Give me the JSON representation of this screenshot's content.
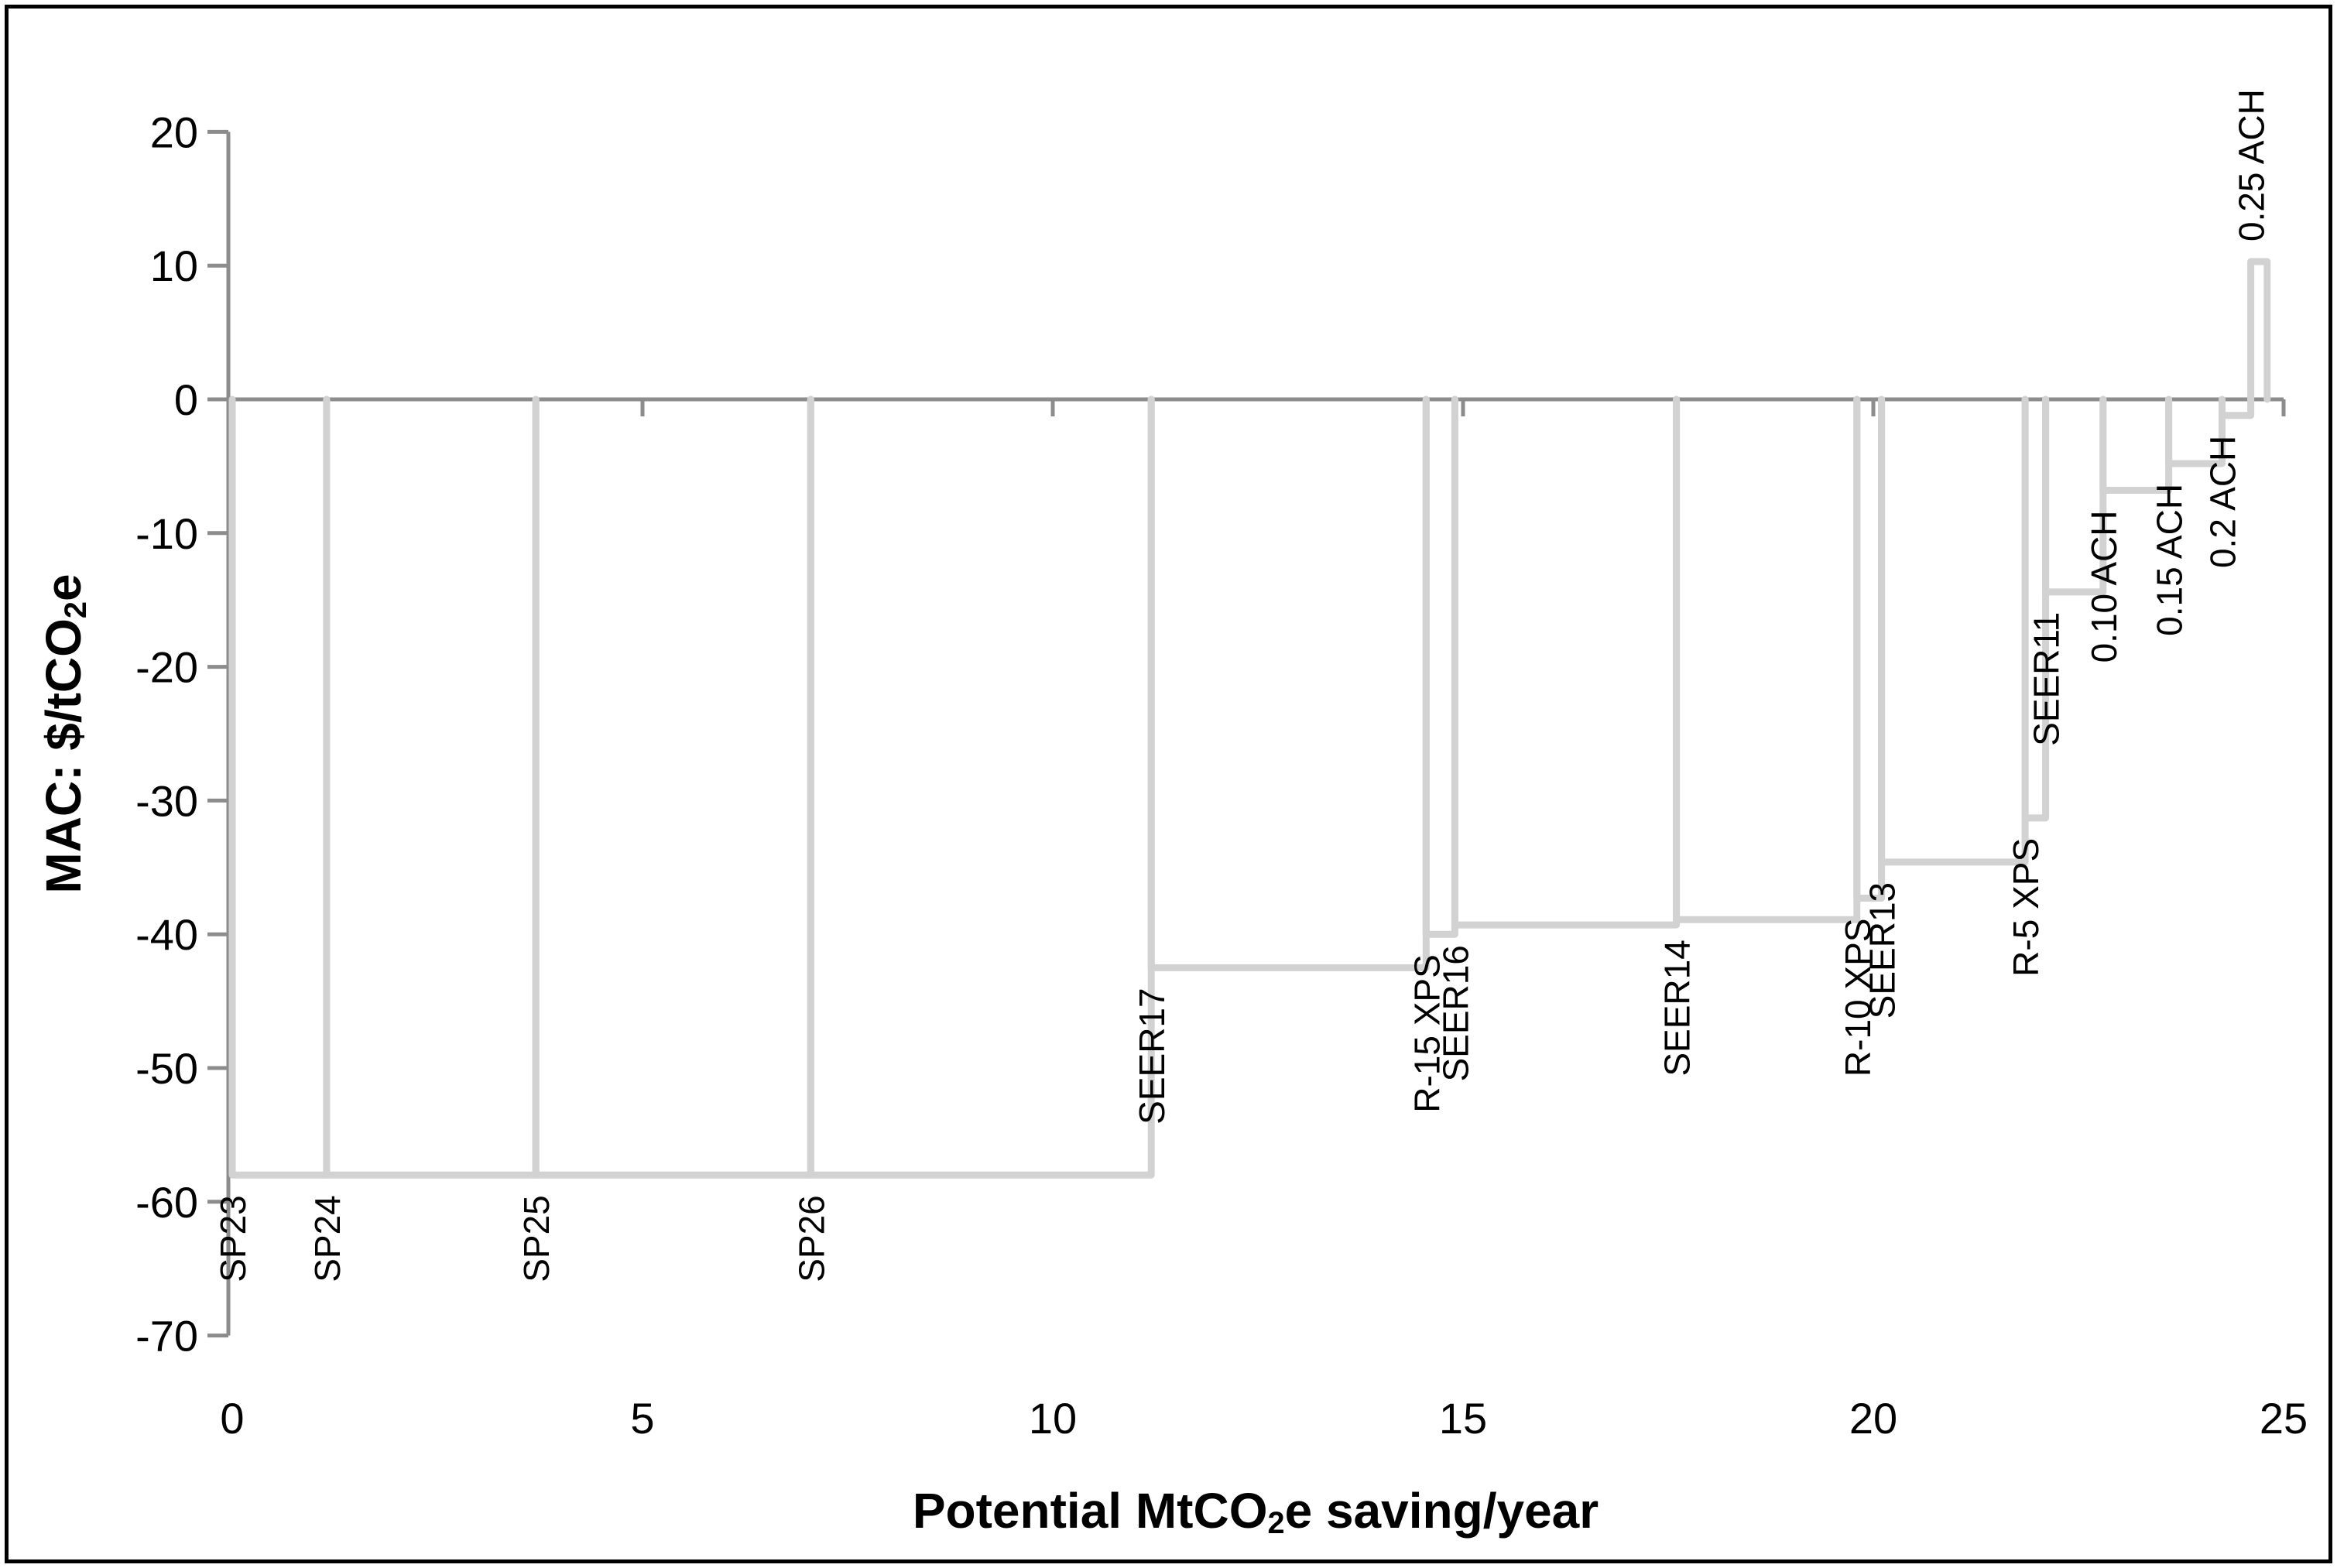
{
  "figure": {
    "background_color": "#ffffff",
    "border_color": "#000000"
  },
  "y_axis": {
    "title_prefix": "MAC: $/tCO",
    "title_sub": "2",
    "title_suffix": "e",
    "ticks": [
      20,
      10,
      0,
      -10,
      -20,
      -30,
      -40,
      -50,
      -60,
      -70
    ]
  },
  "x_axis": {
    "title_prefix": "Potential MtCO",
    "title_sub": "2",
    "title_suffix": "e saving/year",
    "ticks": [
      0,
      5,
      10,
      15,
      20,
      25
    ]
  },
  "chart_data": {
    "type": "line",
    "subtype": "marginal-abatement-cost-step-curve",
    "title": "",
    "xlabel": "Potential MtCO2e saving/year",
    "ylabel": "MAC: $/tCO2e",
    "xlim": [
      0,
      25
    ],
    "ylim": [
      -70,
      20
    ],
    "x_ticks": [
      0,
      5,
      10,
      15,
      20,
      25
    ],
    "y_ticks": [
      20,
      10,
      0,
      -10,
      -20,
      -30,
      -40,
      -50,
      -60,
      -70
    ],
    "grid": false,
    "legend": "none",
    "line_color": "#D2D2D2",
    "axis_color": "#8C8C8C",
    "label_color": "#000000",
    "series": [
      {
        "label": "SP23",
        "x_start": 0,
        "x_end": 1.15,
        "mac": -58
      },
      {
        "label": "SP24",
        "x_start": 1.15,
        "x_end": 3.7,
        "mac": -58
      },
      {
        "label": "SP25",
        "x_start": 3.7,
        "x_end": 7.05,
        "mac": -58
      },
      {
        "label": "SP26",
        "x_start": 7.05,
        "x_end": 11.2,
        "mac": -58
      },
      {
        "label": "SEER17",
        "x_start": 11.2,
        "x_end": 14.55,
        "mac": -42.5
      },
      {
        "label": "R-15 XPS",
        "x_start": 14.55,
        "x_end": 14.9,
        "mac": -40
      },
      {
        "label": "SEER16",
        "x_start": 14.9,
        "x_end": 17.6,
        "mac": -39.3
      },
      {
        "label": "SEER14",
        "x_start": 17.6,
        "x_end": 19.8,
        "mac": -38.9
      },
      {
        "label": "R-10 XPS",
        "x_start": 19.8,
        "x_end": 20.1,
        "mac": -37.3
      },
      {
        "label": "SEER13",
        "x_start": 20.1,
        "x_end": 21.85,
        "mac": -34.6
      },
      {
        "label": "R-5 XPS",
        "x_start": 21.85,
        "x_end": 22.1,
        "mac": -31.3
      },
      {
        "label": "SEER11",
        "x_start": 22.1,
        "x_end": 22.8,
        "mac": -14.4
      },
      {
        "label": "0.10 ACH",
        "x_start": 22.8,
        "x_end": 23.6,
        "mac": -6.8
      },
      {
        "label": "0.15 ACH",
        "x_start": 23.6,
        "x_end": 24.25,
        "mac": -4.8
      },
      {
        "label": "0.2 ACH",
        "x_start": 24.25,
        "x_end": 24.6,
        "mac": -1.2
      },
      {
        "label": "0.25 ACH",
        "x_start": 24.6,
        "x_end": 24.8,
        "mac": 10.3
      }
    ]
  }
}
